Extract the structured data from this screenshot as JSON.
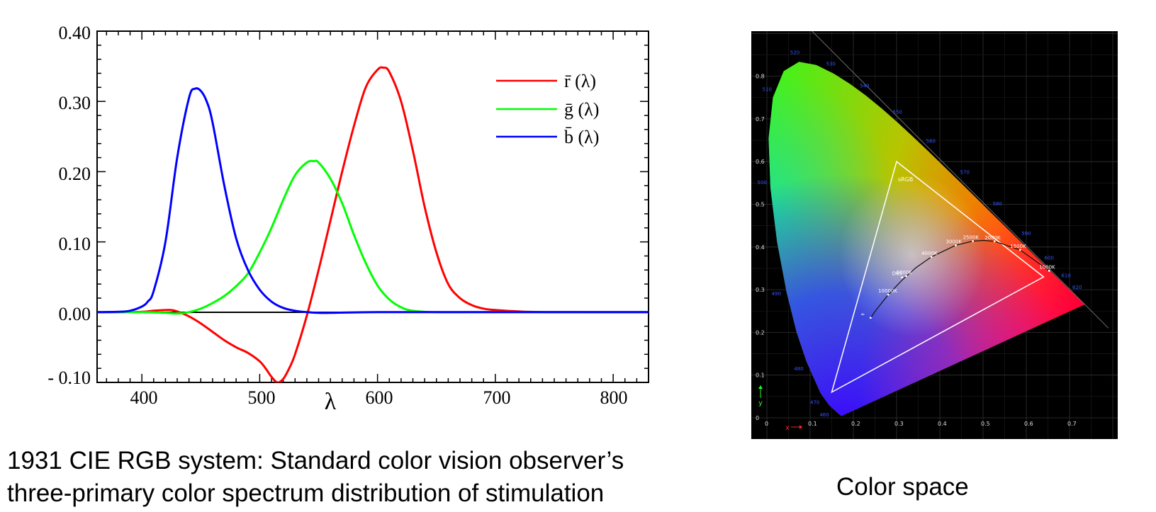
{
  "chart_data": [
    {
      "type": "line",
      "xlabel": "λ",
      "ylabel": "",
      "xlim": [
        362,
        830
      ],
      "ylim": [
        -0.1,
        0.4
      ],
      "xticks": [
        "400",
        "500",
        "600",
        "700",
        "800"
      ],
      "yticks": [
        "0.40",
        "0.30",
        "0.20",
        "0.10",
        "0.00",
        "- 0.10"
      ],
      "grid": false,
      "legend_position": "top-right",
      "series": [
        {
          "name": "r̄ (λ)",
          "color": "#ff0000",
          "x": [
            362,
            380,
            400,
            410,
            420,
            425,
            430,
            440,
            450,
            460,
            470,
            480,
            490,
            500,
            505,
            510,
            515,
            520,
            525,
            530,
            540,
            550,
            560,
            570,
            580,
            590,
            600,
            605,
            610,
            620,
            630,
            640,
            650,
            660,
            670,
            680,
            690,
            700,
            720,
            750,
            830
          ],
          "values": [
            0,
            0,
            0.0005,
            0.002,
            0.003,
            0.003,
            0.001,
            -0.006,
            -0.016,
            -0.028,
            -0.04,
            -0.05,
            -0.058,
            -0.07,
            -0.08,
            -0.092,
            -0.1,
            -0.095,
            -0.08,
            -0.06,
            -0.005,
            0.06,
            0.13,
            0.2,
            0.265,
            0.32,
            0.345,
            0.348,
            0.342,
            0.3,
            0.23,
            0.15,
            0.085,
            0.04,
            0.02,
            0.01,
            0.005,
            0.003,
            0.001,
            0,
            0
          ]
        },
        {
          "name": "ḡ (λ)",
          "color": "#00ff00",
          "x": [
            362,
            400,
            420,
            430,
            440,
            450,
            460,
            470,
            480,
            490,
            500,
            510,
            520,
            530,
            540,
            546,
            550,
            560,
            570,
            580,
            590,
            600,
            610,
            620,
            630,
            650,
            700,
            830
          ],
          "values": [
            0,
            0,
            -0.001,
            -0.002,
            0,
            0.005,
            0.013,
            0.023,
            0.037,
            0.055,
            0.085,
            0.12,
            0.16,
            0.195,
            0.213,
            0.215,
            0.213,
            0.19,
            0.155,
            0.11,
            0.07,
            0.038,
            0.018,
            0.007,
            0.002,
            0,
            0,
            0
          ]
        },
        {
          "name": "b̄ (λ)",
          "color": "#0000ff",
          "x": [
            362,
            380,
            390,
            400,
            405,
            410,
            420,
            430,
            440,
            445,
            450,
            455,
            460,
            470,
            480,
            490,
            500,
            510,
            520,
            530,
            540,
            550,
            560,
            600,
            700,
            830
          ],
          "values": [
            0,
            0.0005,
            0.002,
            0.008,
            0.015,
            0.03,
            0.1,
            0.22,
            0.305,
            0.318,
            0.315,
            0.3,
            0.27,
            0.18,
            0.105,
            0.06,
            0.032,
            0.015,
            0.006,
            0.002,
            0,
            -0.001,
            -0.001,
            0,
            0,
            0
          ]
        }
      ]
    },
    {
      "type": "scatter",
      "xlabel": "x",
      "ylabel": "y",
      "xlim": [
        0,
        0.8
      ],
      "ylim": [
        0,
        0.9
      ],
      "xticks": [
        "0",
        "0.1",
        "0.2",
        "0.3",
        "0.4",
        "0.5",
        "0.6",
        "0.7"
      ],
      "yticks": [
        "0",
        "0.1",
        "0.2",
        "0.3",
        "0.4",
        "0.5",
        "0.6",
        "0.7",
        "0.8"
      ],
      "grid": true,
      "spectral_locus": {
        "x": [
          0.1741,
          0.1738,
          0.1728,
          0.171,
          0.1666,
          0.1566,
          0.144,
          0.1241,
          0.0913,
          0.0687,
          0.0454,
          0.0235,
          0.0082,
          0.0039,
          0.0139,
          0.0389,
          0.0743,
          0.1142,
          0.1547,
          0.1929,
          0.2296,
          0.2658,
          0.3016,
          0.3373,
          0.3731,
          0.4087,
          0.4441,
          0.4788,
          0.5125,
          0.5448,
          0.5752,
          0.6029,
          0.627,
          0.6482,
          0.6658,
          0.6801,
          0.6915,
          0.7006,
          0.714,
          0.7347
        ],
        "y": [
          0.005,
          0.0049,
          0.0048,
          0.0051,
          0.0089,
          0.0177,
          0.0297,
          0.0578,
          0.1327,
          0.2007,
          0.295,
          0.4127,
          0.5384,
          0.6548,
          0.7502,
          0.812,
          0.8338,
          0.8262,
          0.8059,
          0.7816,
          0.7543,
          0.7243,
          0.6923,
          0.6589,
          0.6245,
          0.5896,
          0.5547,
          0.5202,
          0.4866,
          0.4544,
          0.4242,
          0.3965,
          0.3725,
          0.3514,
          0.334,
          0.3197,
          0.3083,
          0.2993,
          0.2859,
          0.2653
        ]
      },
      "wavelength_labels": [
        {
          "text": "520",
          "x": 0.0743,
          "y": 0.8338
        },
        {
          "text": "530",
          "x": 0.1547,
          "y": 0.8059
        },
        {
          "text": "540",
          "x": 0.2296,
          "y": 0.7543
        },
        {
          "text": "550",
          "x": 0.3016,
          "y": 0.6923
        },
        {
          "text": "560",
          "x": 0.3731,
          "y": 0.6245
        },
        {
          "text": "570",
          "x": 0.4441,
          "y": 0.5547
        },
        {
          "text": "580",
          "x": 0.5125,
          "y": 0.4866
        },
        {
          "text": "590",
          "x": 0.5752,
          "y": 0.4242
        },
        {
          "text": "600",
          "x": 0.627,
          "y": 0.3725
        },
        {
          "text": "610",
          "x": 0.6658,
          "y": 0.334
        },
        {
          "text": "620",
          "x": 0.6915,
          "y": 0.3083
        },
        {
          "text": "510",
          "x": 0.0139,
          "y": 0.7502
        },
        {
          "text": "500",
          "x": 0.0082,
          "y": 0.5384
        },
        {
          "text": "490",
          "x": 0.0454,
          "y": 0.295
        },
        {
          "text": "480",
          "x": 0.0913,
          "y": 0.1327
        },
        {
          "text": "470",
          "x": 0.1241,
          "y": 0.0578
        },
        {
          "text": "460",
          "x": 0.144,
          "y": 0.0297
        }
      ],
      "srgb_triangle": {
        "label": "sRGB",
        "x": [
          0.64,
          0.3,
          0.15
        ],
        "y": [
          0.33,
          0.6,
          0.06
        ]
      },
      "planckian_locus": {
        "x": [
          0.2399,
          0.2525,
          0.2806,
          0.3138,
          0.3447,
          0.3805,
          0.4369,
          0.4764,
          0.5018,
          0.5266,
          0.5857,
          0.6528
        ],
        "y": [
          0.2342,
          0.2523,
          0.2883,
          0.3236,
          0.3516,
          0.3768,
          0.4041,
          0.4137,
          0.4155,
          0.4133,
          0.3932,
          0.3444
        ],
        "labels": [
          {
            "text": "∞",
            "x": 0.2399,
            "y": 0.2342
          },
          {
            "text": "10000K",
            "x": 0.2806,
            "y": 0.2883
          },
          {
            "text": "6000K",
            "x": 0.3221,
            "y": 0.3318
          },
          {
            "text": "D65",
            "x": 0.3127,
            "y": 0.329
          },
          {
            "text": "4000K",
            "x": 0.3805,
            "y": 0.3768
          },
          {
            "text": "3000K",
            "x": 0.4369,
            "y": 0.4041
          },
          {
            "text": "2500K",
            "x": 0.4764,
            "y": 0.4137
          },
          {
            "text": "2000K",
            "x": 0.5266,
            "y": 0.4133
          },
          {
            "text": "1500K",
            "x": 0.5857,
            "y": 0.3932
          },
          {
            "text": "1000K",
            "x": 0.6528,
            "y": 0.3444
          }
        ]
      }
    }
  ],
  "captions": {
    "left_line1": "1931 CIE RGB system: Standard color vision observer’s",
    "left_line2": "three-primary color spectrum distribution of stimulation",
    "right": "Color space"
  }
}
